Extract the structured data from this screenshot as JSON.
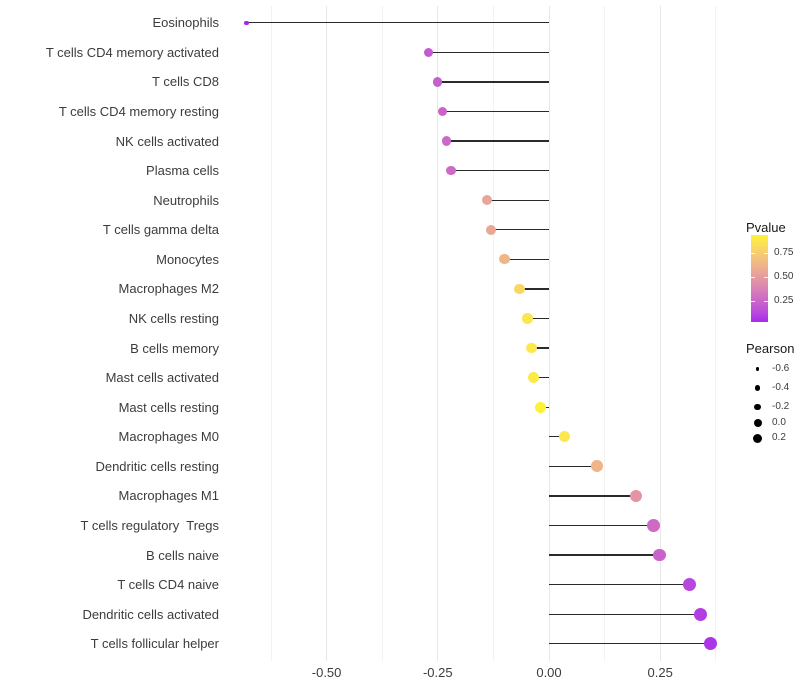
{
  "chart_data": {
    "type": "lollipop",
    "title": "",
    "xlabel": "",
    "ylabel": "",
    "orientation": "horizontal",
    "baseline": 0,
    "x_axis": {
      "range": [
        -0.74,
        0.415
      ],
      "major_ticks": [
        -0.5,
        -0.25,
        0,
        0.25
      ],
      "major_tick_labels": [
        "-0.50",
        "-0.25",
        "0.00",
        "0.25"
      ],
      "minor_ticks": [
        -0.625,
        -0.375,
        -0.125,
        0.125,
        0.375
      ],
      "grid": "vertical-major-and-minor"
    },
    "points": [
      {
        "category": "Eosinophils",
        "pearson": -0.68,
        "pvalue": 0.02
      },
      {
        "category": "T cells CD4 memory activated",
        "pearson": -0.27,
        "pvalue": 0.2
      },
      {
        "category": "T cells CD8",
        "pearson": -0.25,
        "pvalue": 0.22
      },
      {
        "category": "T cells CD4 memory resting",
        "pearson": -0.24,
        "pvalue": 0.24
      },
      {
        "category": "NK cells activated",
        "pearson": -0.23,
        "pvalue": 0.26
      },
      {
        "category": "Plasma cells",
        "pearson": -0.22,
        "pvalue": 0.27
      },
      {
        "category": "Neutrophils",
        "pearson": -0.14,
        "pvalue": 0.55
      },
      {
        "category": "T cells gamma delta",
        "pearson": -0.13,
        "pvalue": 0.56
      },
      {
        "category": "Monocytes",
        "pearson": -0.1,
        "pvalue": 0.64
      },
      {
        "category": "Macrophages M2",
        "pearson": -0.066,
        "pvalue": 0.8
      },
      {
        "category": "NK cells resting",
        "pearson": -0.048,
        "pvalue": 0.87
      },
      {
        "category": "B cells memory",
        "pearson": -0.04,
        "pvalue": 0.88
      },
      {
        "category": "Mast cells activated",
        "pearson": -0.034,
        "pvalue": 0.9
      },
      {
        "category": "Mast cells resting",
        "pearson": -0.019,
        "pvalue": 0.93
      },
      {
        "category": "Macrophages M0",
        "pearson": 0.035,
        "pvalue": 0.88
      },
      {
        "category": "Dendritic cells resting",
        "pearson": 0.108,
        "pvalue": 0.63
      },
      {
        "category": "Macrophages M1",
        "pearson": 0.195,
        "pvalue": 0.47
      },
      {
        "category": "T cells regulatory  Tregs",
        "pearson": 0.235,
        "pvalue": 0.27
      },
      {
        "category": "B cells naive",
        "pearson": 0.249,
        "pvalue": 0.24
      },
      {
        "category": "T cells CD4 naive",
        "pearson": 0.315,
        "pvalue": 0.12
      },
      {
        "category": "Dendritic cells activated",
        "pearson": 0.34,
        "pvalue": 0.09
      },
      {
        "category": "T cells follicular helper",
        "pearson": 0.363,
        "pvalue": 0.06
      }
    ],
    "legend": {
      "position": "right",
      "pvalue": {
        "title": "Pvalue",
        "tick_values": [
          0.75,
          0.5,
          0.25
        ],
        "tick_labels": [
          "0.75",
          "0.50",
          "0.25"
        ],
        "bar_value_range": [
          0.03,
          0.94
        ],
        "low_color": "#A020F0",
        "high_color": "#FFFF00"
      },
      "pearson": {
        "title": "Pearson",
        "entries": [
          {
            "label": "-0.6",
            "value": -0.6
          },
          {
            "label": "-0.4",
            "value": -0.4
          },
          {
            "label": "-0.2",
            "value": -0.2
          },
          {
            "label": "0.0",
            "value": 0.0
          },
          {
            "label": "0.2",
            "value": 0.2
          }
        ],
        "dot_color": "#000000"
      }
    },
    "colors": {
      "background": "#ffffff",
      "stem": "#2b2b2b",
      "axis_text": "#3c3c3c",
      "grid_major": "#e7e7e7",
      "grid_minor": "#f2f2f2"
    }
  }
}
